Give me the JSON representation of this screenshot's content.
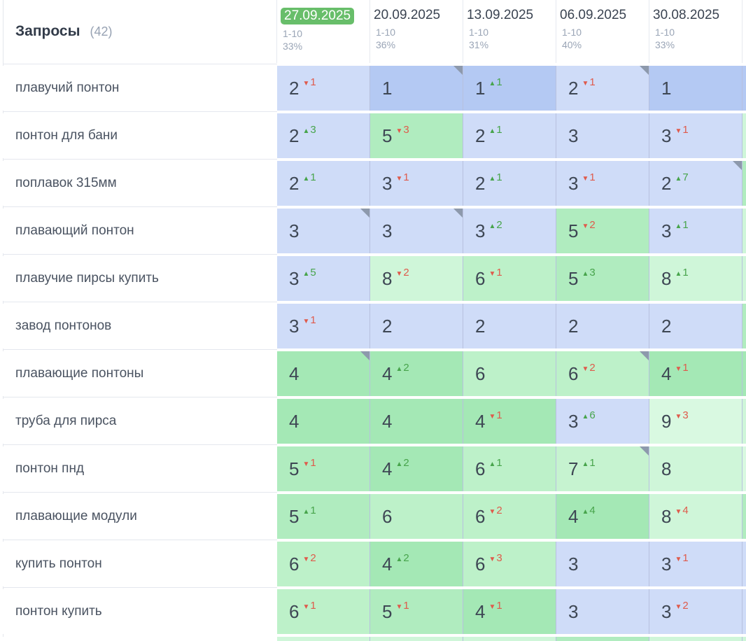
{
  "table": {
    "title": "Запросы",
    "count": "(42)",
    "columns": [
      {
        "date": "27.09.2025",
        "selected": true,
        "range": "1-10",
        "percent": "33%"
      },
      {
        "date": "20.09.2025",
        "selected": false,
        "range": "1-10",
        "percent": "36%"
      },
      {
        "date": "13.09.2025",
        "selected": false,
        "range": "1-10",
        "percent": "31%"
      },
      {
        "date": "06.09.2025",
        "selected": false,
        "range": "1-10",
        "percent": "40%"
      },
      {
        "date": "30.08.2025",
        "selected": false,
        "range": "1-10",
        "percent": "33%"
      }
    ],
    "rows": [
      {
        "keyword": "плавучий понтон",
        "edge": "1",
        "cells": [
          {
            "pos": 2,
            "change": -1
          },
          {
            "pos": 1,
            "corner": true
          },
          {
            "pos": 1,
            "change": 1
          },
          {
            "pos": 2,
            "change": -1,
            "corner": true
          },
          {
            "pos": 1
          }
        ]
      },
      {
        "keyword": "понтон для бани",
        "edge": "8",
        "cells": [
          {
            "pos": 2,
            "change": 3
          },
          {
            "pos": 5,
            "change": -3
          },
          {
            "pos": 2,
            "change": 1
          },
          {
            "pos": 3
          },
          {
            "pos": 3,
            "change": -1
          }
        ]
      },
      {
        "keyword": "поплавок 315мм",
        "edge": "5",
        "cells": [
          {
            "pos": 2,
            "change": 1
          },
          {
            "pos": 3,
            "change": -1
          },
          {
            "pos": 2,
            "change": 1
          },
          {
            "pos": 3,
            "change": -1
          },
          {
            "pos": 2,
            "change": 7,
            "corner": true
          }
        ]
      },
      {
        "keyword": "плавающий понтон",
        "edge": "8",
        "cells": [
          {
            "pos": 3,
            "corner": true
          },
          {
            "pos": 3,
            "corner": true
          },
          {
            "pos": 3,
            "change": 2
          },
          {
            "pos": 5,
            "change": -2
          },
          {
            "pos": 3,
            "change": 1
          }
        ]
      },
      {
        "keyword": "плавучие пирсы купить",
        "edge": "8",
        "cells": [
          {
            "pos": 3,
            "change": 5
          },
          {
            "pos": 8,
            "change": -2
          },
          {
            "pos": 6,
            "change": -1
          },
          {
            "pos": 5,
            "change": 3
          },
          {
            "pos": 8,
            "change": 1
          }
        ]
      },
      {
        "keyword": "завод понтонов",
        "edge": "5",
        "cells": [
          {
            "pos": 3,
            "change": -1
          },
          {
            "pos": 2
          },
          {
            "pos": 2
          },
          {
            "pos": 2
          },
          {
            "pos": 2
          }
        ]
      },
      {
        "keyword": "плавающие понтоны",
        "edge": "4",
        "cells": [
          {
            "pos": 4,
            "corner": true
          },
          {
            "pos": 4,
            "change": 2
          },
          {
            "pos": 6
          },
          {
            "pos": 6,
            "change": -2,
            "corner": true
          },
          {
            "pos": 4,
            "change": -1
          }
        ]
      },
      {
        "keyword": "труба для пирса",
        "edge": "8",
        "cells": [
          {
            "pos": 4
          },
          {
            "pos": 4
          },
          {
            "pos": 4,
            "change": -1
          },
          {
            "pos": 3,
            "change": 6
          },
          {
            "pos": 9,
            "change": -3
          }
        ]
      },
      {
        "keyword": "понтон пнд",
        "edge": "9",
        "cells": [
          {
            "pos": 5,
            "change": -1
          },
          {
            "pos": 4,
            "change": 2
          },
          {
            "pos": 6,
            "change": 1
          },
          {
            "pos": 7,
            "change": 1,
            "corner": true
          },
          {
            "pos": 8
          }
        ]
      },
      {
        "keyword": "плавающие модули",
        "edge": "5",
        "cells": [
          {
            "pos": 5,
            "change": 1
          },
          {
            "pos": 6
          },
          {
            "pos": 6,
            "change": -2
          },
          {
            "pos": 4,
            "change": 4
          },
          {
            "pos": 8,
            "change": -4
          }
        ]
      },
      {
        "keyword": "купить понтон",
        "edge": "3",
        "cells": [
          {
            "pos": 6,
            "change": -2
          },
          {
            "pos": 4,
            "change": 2
          },
          {
            "pos": 6,
            "change": -3
          },
          {
            "pos": 3
          },
          {
            "pos": 3,
            "change": -1
          }
        ]
      },
      {
        "keyword": "понтон купить",
        "edge": "3",
        "cells": [
          {
            "pos": 6,
            "change": -1
          },
          {
            "pos": 5,
            "change": -1
          },
          {
            "pos": 4,
            "change": -1
          },
          {
            "pos": 3
          },
          {
            "pos": 3,
            "change": -2
          }
        ]
      }
    ],
    "partial_row": {
      "colors": [
        "8",
        "8",
        "8",
        "5",
        "8",
        "8"
      ]
    }
  },
  "colors": {
    "selected_date_badge": "#68be6a",
    "badge_text": "#ffffff",
    "up": "#47a44b",
    "down": "#df5a4b",
    "corner_marker": "#8d99ac",
    "position_colors": {
      "1": "#b4c9f3",
      "2": "#cfdcf8",
      "3": "#cfdcf8",
      "4": "#a4e8b5",
      "5": "#b0ecbf",
      "6": "#bdf1c9",
      "7": "#c6f3d0",
      "8": "#cff6d9",
      "9": "#d9f9e1",
      "10": "#dffbe6"
    }
  },
  "icons": {
    "up_arrow": "▲",
    "down_arrow": "▼"
  }
}
